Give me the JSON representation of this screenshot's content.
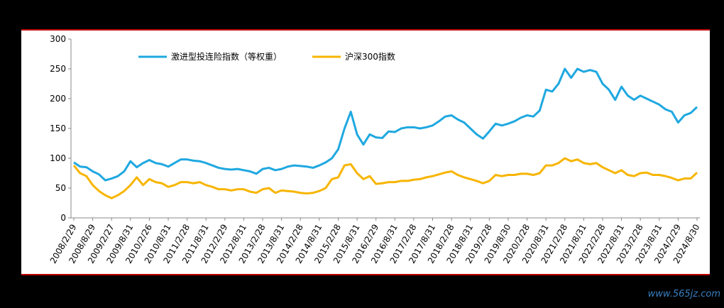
{
  "chart_data": {
    "type": "line",
    "categories": [
      "2008/2/29",
      null,
      null,
      "2008/8/29",
      null,
      null,
      "2009/2/27",
      null,
      null,
      "2009/8/31",
      null,
      null,
      "2010/2/26",
      null,
      null,
      "2010/8/31",
      null,
      null,
      "2011/2/28",
      null,
      null,
      "2011/8/31",
      null,
      null,
      "2012/2/29",
      null,
      null,
      "2012/8/31",
      null,
      null,
      "2013/2/28",
      null,
      null,
      "2013/8/31",
      null,
      null,
      "2014/2/28",
      null,
      null,
      "2014/8/31",
      null,
      null,
      "2015/2/28",
      null,
      null,
      "2015/8/31",
      null,
      null,
      "2016/2/29",
      null,
      null,
      "2016/8/31",
      null,
      null,
      "2017/2/28",
      null,
      null,
      "2017/8/31",
      null,
      null,
      "2018/2/28",
      null,
      null,
      "2018/8/31",
      null,
      null,
      "2019/2/28",
      null,
      null,
      "2019/8/30",
      null,
      null,
      "2020/2/28",
      null,
      null,
      "2020/8/31",
      null,
      null,
      "2021/2/28",
      null,
      null,
      "2021/8/31",
      null,
      null,
      "2022/2/28",
      null,
      null,
      "2022/8/31",
      null,
      null,
      "2023/2/28",
      null,
      null,
      "2023/8/31",
      null,
      null,
      "2024/2/29",
      null,
      null,
      "2024/8/30"
    ],
    "series": [
      {
        "name": "激进型投连险指数（等权重）",
        "color": "#1fa8e0",
        "values": [
          93,
          86,
          85,
          78,
          73,
          63,
          66,
          70,
          78,
          95,
          85,
          92,
          97,
          92,
          90,
          86,
          92,
          98,
          98,
          96,
          95,
          92,
          88,
          84,
          82,
          81,
          82,
          80,
          78,
          74,
          82,
          84,
          80,
          82,
          86,
          88,
          87,
          86,
          84,
          88,
          93,
          100,
          115,
          150,
          178,
          140,
          123,
          140,
          135,
          134,
          145,
          144,
          150,
          152,
          152,
          150,
          152,
          155,
          162,
          170,
          172,
          165,
          160,
          150,
          140,
          133,
          145,
          158,
          155,
          158,
          162,
          168,
          172,
          170,
          180,
          215,
          212,
          225,
          250,
          235,
          250,
          245,
          248,
          245,
          225,
          215,
          198,
          220,
          205,
          198,
          205,
          200,
          195,
          190,
          182,
          178,
          160,
          172,
          176,
          186
        ]
      },
      {
        "name": "沪深300指数",
        "color": "#f7b500",
        "values": [
          88,
          75,
          70,
          55,
          45,
          38,
          33,
          38,
          45,
          55,
          68,
          55,
          65,
          60,
          58,
          52,
          55,
          60,
          60,
          58,
          60,
          55,
          52,
          48,
          48,
          46,
          48,
          48,
          44,
          42,
          48,
          50,
          42,
          46,
          45,
          44,
          42,
          41,
          42,
          45,
          50,
          65,
          68,
          88,
          90,
          75,
          65,
          70,
          57,
          58,
          60,
          60,
          62,
          62,
          64,
          65,
          68,
          70,
          73,
          76,
          78,
          72,
          68,
          65,
          62,
          58,
          62,
          72,
          70,
          72,
          72,
          74,
          74,
          72,
          75,
          88,
          88,
          92,
          100,
          95,
          98,
          92,
          90,
          92,
          85,
          80,
          75,
          80,
          72,
          70,
          75,
          76,
          72,
          72,
          70,
          67,
          63,
          66,
          66,
          76
        ]
      }
    ],
    "ylim": [
      0,
      300
    ],
    "yticks": [
      0,
      50,
      100,
      150,
      200,
      250,
      300
    ],
    "grid": false,
    "watermark": "www.565jz.com"
  }
}
